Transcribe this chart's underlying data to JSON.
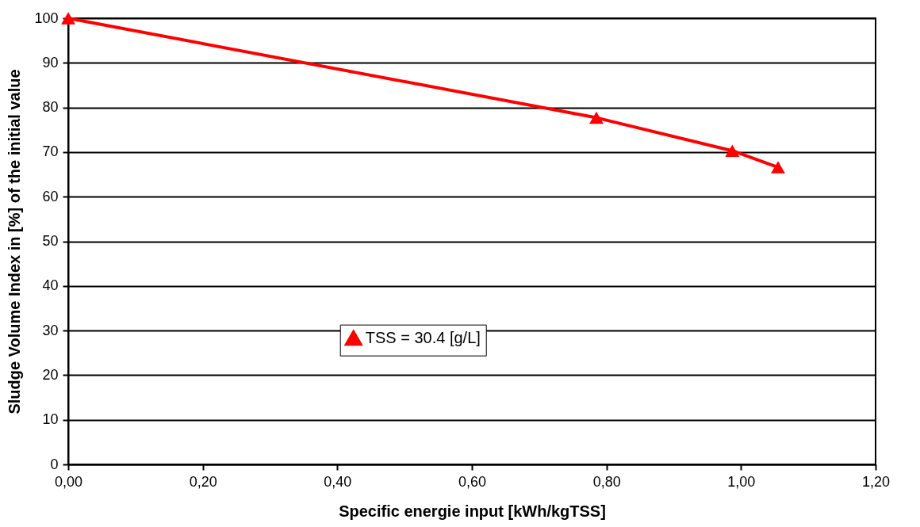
{
  "chart_data": {
    "type": "line",
    "xlabel": "Specific energie input [kWh/kgTSS]",
    "ylabel": "Sludge Volume Index in [%] of the initial value",
    "x": [
      0,
      0.785,
      0.987,
      1.055
    ],
    "series": [
      {
        "name": "TSS = 30.4 [g/L]",
        "color": "#ff0000",
        "values": [
          100,
          77.7,
          70.3,
          66.6
        ]
      }
    ],
    "xlim": [
      0,
      1.2
    ],
    "xticks": [
      {
        "value": 0,
        "label": "0,00"
      },
      {
        "value": 0.2,
        "label": "0,20"
      },
      {
        "value": 0.4,
        "label": "0,40"
      },
      {
        "value": 0.6,
        "label": "0,60"
      },
      {
        "value": 0.8,
        "label": "0,80"
      },
      {
        "value": 1,
        "label": "1,00"
      },
      {
        "value": 1.2,
        "label": "1,20"
      }
    ],
    "ylim": [
      0,
      100
    ],
    "yticks": [
      0,
      10,
      20,
      30,
      40,
      50,
      60,
      70,
      80,
      90,
      100
    ],
    "grid": "y",
    "legend": "bottom",
    "marker": "triangle",
    "line_style": "solid"
  }
}
